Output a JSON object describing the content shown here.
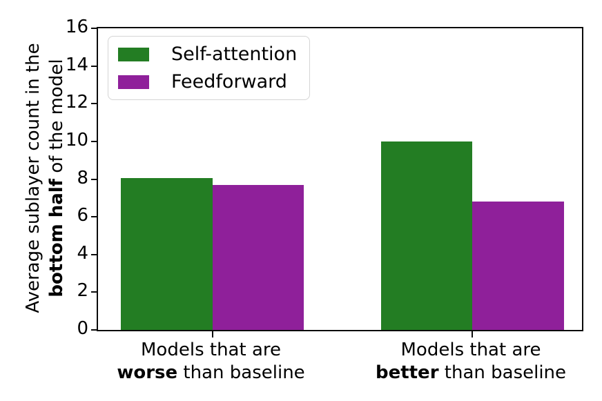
{
  "chart_data": {
    "type": "bar",
    "title": "",
    "ylabel": {
      "line1": "Average sublayer count in the",
      "line2_bold": "bottom half",
      "line2_rest": " of the model"
    },
    "categories": [
      {
        "line1": "Models that are",
        "line2_bold": "worse",
        "line2_rest": " than baseline"
      },
      {
        "line1": "Models that are",
        "line2_bold": "better",
        "line2_rest": " than baseline"
      }
    ],
    "series": [
      {
        "name": "Self-attention",
        "color": "#237d23",
        "values": [
          8.05,
          10.0
        ]
      },
      {
        "name": "Feedforward",
        "color": "#8f209a",
        "values": [
          7.7,
          6.8
        ]
      }
    ],
    "ylim": [
      0,
      16
    ],
    "yticks": [
      0,
      2,
      4,
      6,
      8,
      10,
      12,
      14,
      16
    ],
    "grid": false,
    "legend_position": "upper left",
    "axis_color": "#0a0a0a",
    "text_color": "#000000",
    "background_color": "#ffffff"
  }
}
